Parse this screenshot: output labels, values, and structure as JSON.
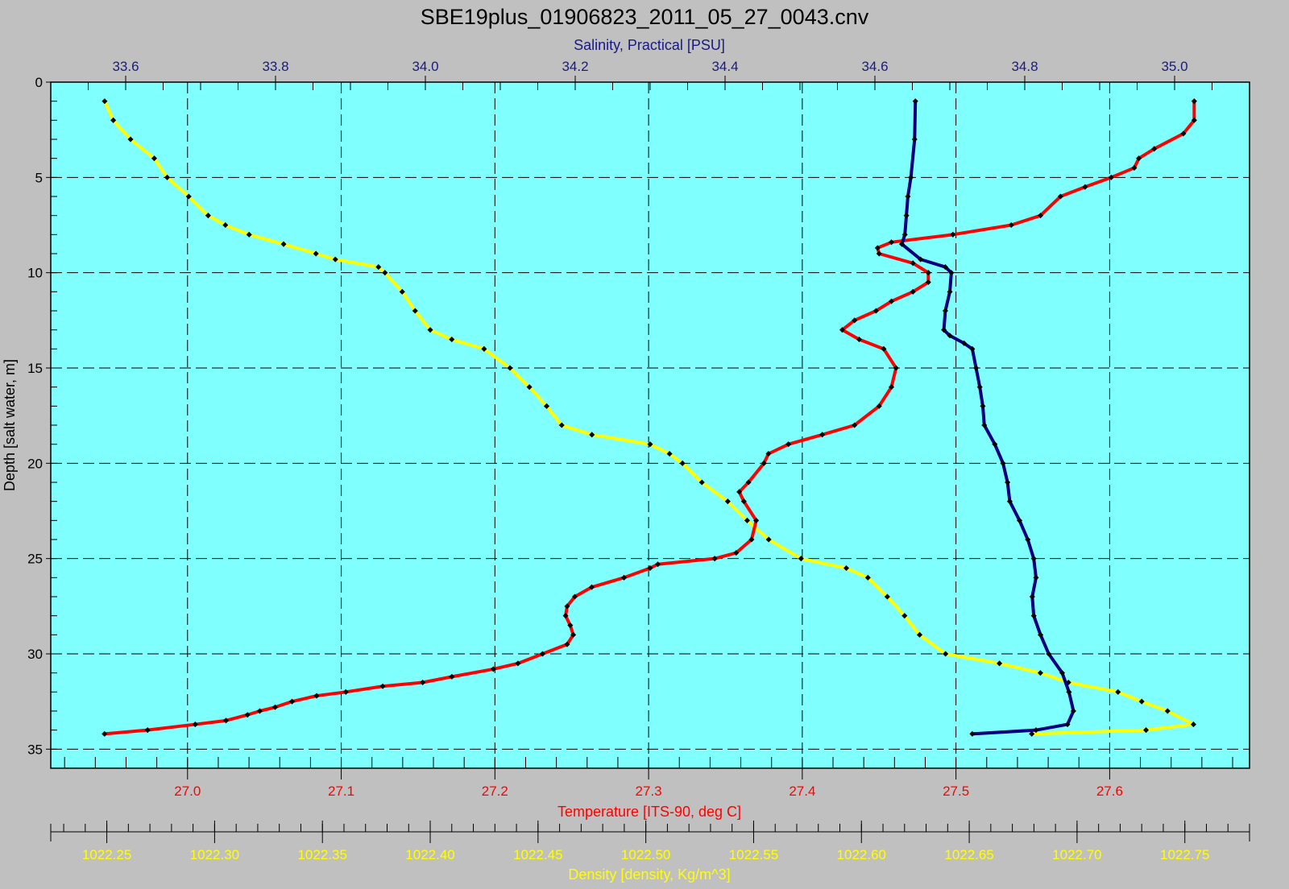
{
  "chart_data": {
    "type": "line",
    "title": "SBE19plus_01906823_2011_05_27_0043.cnv",
    "background_color": "#c0c0c0",
    "plot_background_color": "#80ffff",
    "grid": true,
    "y_axis": {
      "label": "Depth [salt water, m]",
      "range": [
        0,
        36
      ],
      "inverted": true,
      "ticks": [
        0,
        5,
        10,
        15,
        20,
        25,
        30,
        35
      ],
      "tick_labels": [
        "0",
        "5",
        "10",
        "15",
        "20",
        "25",
        "30",
        "35"
      ]
    },
    "x_axes": [
      {
        "id": "salinity",
        "position": "top",
        "label": "Salinity, Practical [PSU]",
        "color": "#1a1a80",
        "range": [
          33.5,
          35.1
        ],
        "ticks": [
          33.6,
          33.8,
          34.0,
          34.2,
          34.4,
          34.6,
          34.8,
          35.0
        ],
        "tick_labels": [
          "33.6",
          "33.8",
          "34.0",
          "34.2",
          "34.4",
          "34.6",
          "34.8",
          "35.0"
        ]
      },
      {
        "id": "temperature",
        "position": "bottom",
        "label": "Temperature [ITS-90, deg C]",
        "color": "#ff0000",
        "range": [
          26.911,
          27.691
        ],
        "ticks": [
          27.0,
          27.1,
          27.2,
          27.3,
          27.4,
          27.5,
          27.6
        ],
        "tick_labels": [
          "27.0",
          "27.1",
          "27.2",
          "27.3",
          "27.4",
          "27.5",
          "27.6"
        ]
      },
      {
        "id": "density",
        "position": "bottom-outer",
        "label": "Density [density, Kg/m^3]",
        "color": "#ffff00",
        "range": [
          1022.224,
          1022.78
        ],
        "ticks": [
          1022.25,
          1022.3,
          1022.35,
          1022.4,
          1022.45,
          1022.5,
          1022.55,
          1022.6,
          1022.65,
          1022.7,
          1022.75
        ],
        "tick_labels": [
          "1022.25",
          "1022.30",
          "1022.35",
          "1022.40",
          "1022.45",
          "1022.50",
          "1022.55",
          "1022.60",
          "1022.65",
          "1022.70",
          "1022.75"
        ]
      }
    ],
    "series": [
      {
        "axis": "temperature",
        "color": "#ff0000",
        "marker_color": "#000000",
        "depth": [
          1,
          2,
          2.7,
          3.5,
          4,
          4.5,
          5,
          5.5,
          6,
          7,
          7.5,
          8,
          8.4,
          8.7,
          9,
          9.5,
          10,
          10.5,
          11,
          11.5,
          12,
          12.5,
          13,
          13.5,
          14,
          15,
          16,
          17,
          18,
          18.5,
          19,
          19.5,
          20,
          21,
          21.5,
          22,
          23,
          24,
          24.7,
          25,
          25.3,
          25.5,
          26,
          26.5,
          27,
          27.5,
          28,
          28.5,
          29,
          29.5,
          30,
          30.5,
          30.8,
          31.2,
          31.5,
          31.7,
          32,
          32.2,
          32.5,
          32.8,
          33,
          33.2,
          33.5,
          33.7,
          34,
          34.2
        ],
        "values": [
          27.655,
          27.655,
          27.648,
          27.629,
          27.619,
          27.616,
          27.601,
          27.584,
          27.568,
          27.555,
          27.536,
          27.498,
          27.458,
          27.449,
          27.45,
          27.472,
          27.482,
          27.482,
          27.472,
          27.458,
          27.448,
          27.434,
          27.426,
          27.437,
          27.453,
          27.461,
          27.458,
          27.45,
          27.434,
          27.413,
          27.391,
          27.378,
          27.375,
          27.365,
          27.359,
          27.362,
          27.37,
          27.367,
          27.357,
          27.343,
          27.306,
          27.301,
          27.284,
          27.263,
          27.252,
          27.247,
          27.246,
          27.249,
          27.251,
          27.247,
          27.231,
          27.215,
          27.199,
          27.172,
          27.153,
          27.127,
          27.103,
          27.084,
          27.068,
          27.057,
          27.047,
          27.039,
          27.025,
          27.005,
          26.974,
          26.946
        ]
      },
      {
        "axis": "salinity",
        "color": "#000080",
        "marker_color": "#000000",
        "depth": [
          1,
          3,
          5,
          6,
          7,
          8,
          8.5,
          9.3,
          9.7,
          10,
          11,
          12,
          13,
          13.3,
          13.7,
          14,
          15,
          16,
          17,
          18,
          19,
          20,
          21,
          22,
          23,
          24,
          25,
          26,
          27,
          28,
          29,
          30,
          31,
          32,
          33,
          33.7,
          34,
          34.2
        ],
        "values": [
          34.654,
          34.653,
          34.648,
          34.644,
          34.642,
          34.64,
          34.636,
          34.661,
          34.694,
          34.702,
          34.7,
          34.694,
          34.692,
          34.7,
          34.719,
          34.73,
          34.735,
          34.74,
          34.744,
          34.746,
          34.76,
          34.771,
          34.777,
          34.78,
          34.793,
          34.804,
          34.812,
          34.815,
          34.81,
          34.812,
          34.821,
          34.832,
          34.85,
          34.859,
          34.865,
          34.857,
          34.815,
          34.73
        ]
      },
      {
        "axis": "density",
        "color": "#ffff00",
        "marker_color": "#000000",
        "depth": [
          1,
          2,
          3,
          4,
          5,
          6,
          7,
          7.5,
          8,
          8.5,
          9,
          9.3,
          9.7,
          10,
          11,
          12,
          13,
          13.5,
          14,
          15,
          16,
          17,
          18,
          18.5,
          19,
          19.5,
          20,
          21,
          22,
          23,
          24,
          25,
          25.5,
          26,
          27,
          28,
          29,
          30,
          30.5,
          31,
          31.5,
          32,
          32.5,
          33,
          33.7,
          34,
          34.2
        ],
        "values": [
          1022.249,
          1022.253,
          1022.261,
          1022.272,
          1022.278,
          1022.288,
          1022.297,
          1022.305,
          1022.316,
          1022.332,
          1022.347,
          1022.356,
          1022.376,
          1022.379,
          1022.387,
          1022.393,
          1022.4,
          1022.41,
          1022.425,
          1022.437,
          1022.446,
          1022.454,
          1022.461,
          1022.475,
          1022.502,
          1022.511,
          1022.517,
          1022.526,
          1022.538,
          1022.547,
          1022.557,
          1022.572,
          1022.593,
          1022.603,
          1022.612,
          1022.62,
          1022.627,
          1022.639,
          1022.664,
          1022.683,
          1022.696,
          1022.719,
          1022.73,
          1022.742,
          1022.754,
          1022.732,
          1022.679
        ]
      }
    ]
  }
}
